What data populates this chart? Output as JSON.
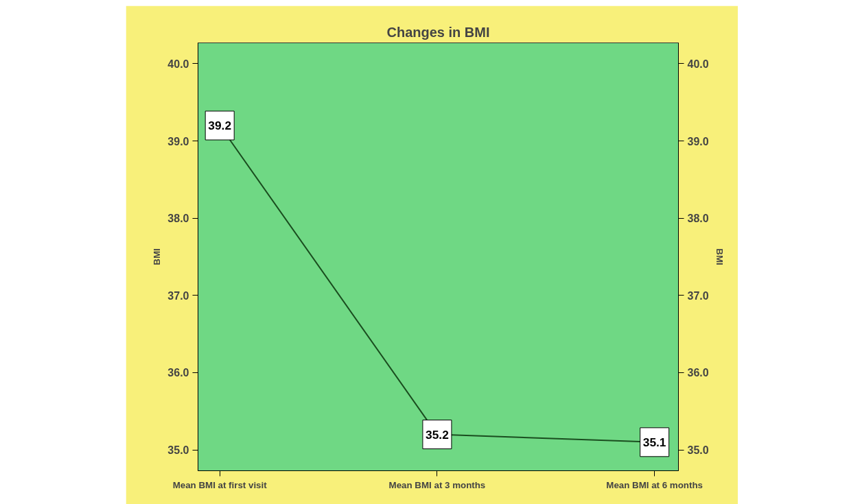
{
  "chart_data": {
    "type": "line",
    "title": "Changes in BMI",
    "ylabel": "BMI",
    "y2label": "BMI",
    "categories": [
      "Mean BMI at first visit",
      "Mean BMI at 3 months",
      "Mean BMI at 6 months"
    ],
    "series": [
      {
        "color": "#1a4d1f",
        "values": [
          39.2,
          35.2,
          35.1
        ]
      }
    ],
    "ylim": [
      34.73,
      40.27
    ],
    "yticks": [
      {
        "value": 35,
        "label": "35.0"
      },
      {
        "value": 36,
        "label": "36.0"
      },
      {
        "value": 37,
        "label": "37.0"
      },
      {
        "value": 38,
        "label": "38.0"
      },
      {
        "value": 39,
        "label": "39.0"
      },
      {
        "value": 40,
        "label": "40.0"
      }
    ],
    "y2lim": [
      34.73,
      40.27
    ],
    "y2ticks": [
      {
        "value": 35,
        "label": "35.0"
      },
      {
        "value": 36,
        "label": "36.0"
      },
      {
        "value": 37,
        "label": "37.0"
      },
      {
        "value": 38,
        "label": "38.0"
      },
      {
        "value": 39,
        "label": "39.0"
      },
      {
        "value": 40,
        "label": "40.0"
      }
    ],
    "data_labels": true,
    "grid": false,
    "marker": "square",
    "line_style": "solid"
  }
}
